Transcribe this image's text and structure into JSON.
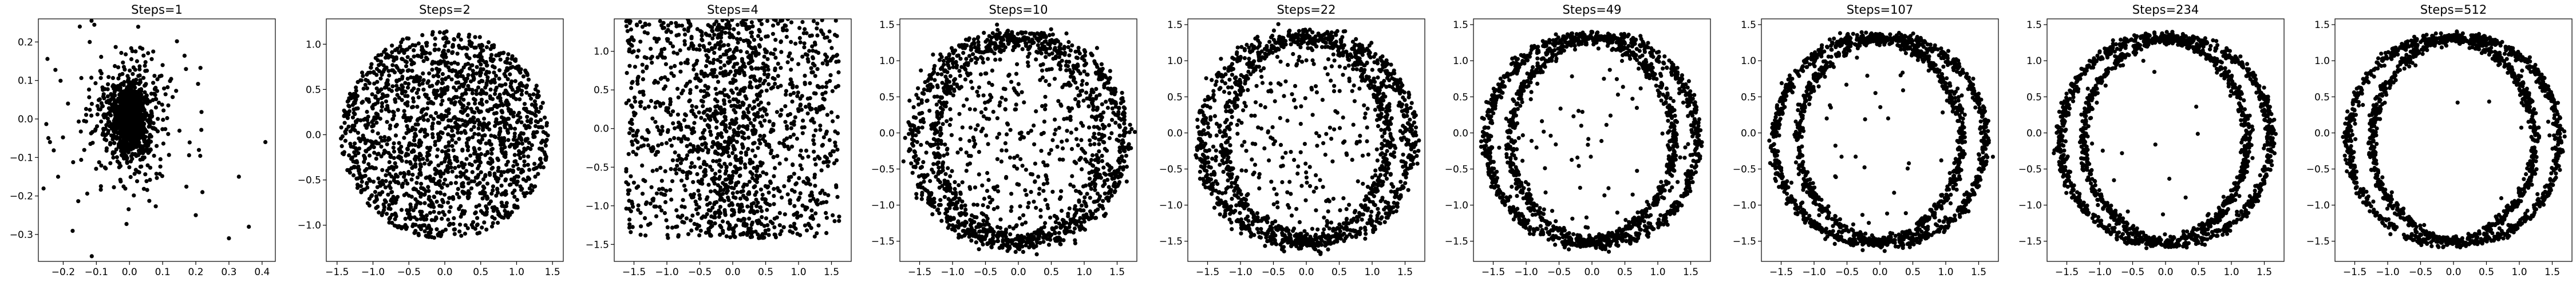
{
  "chart_data": [
    {
      "type": "scatter",
      "title": "Steps=1",
      "shape": "blob",
      "color": "#000000",
      "xlim": [
        -0.275,
        0.44
      ],
      "ylim": [
        -0.37,
        0.26
      ],
      "xticks": [
        -0.2,
        -0.1,
        0.0,
        0.1,
        0.2,
        0.3,
        0.4
      ],
      "xtick_labels": [
        "−0.2",
        "−0.1",
        "0.0",
        "0.1",
        "0.2",
        "0.3",
        "0.4"
      ],
      "yticks": [
        -0.3,
        -0.2,
        -0.1,
        0.0,
        0.1,
        0.2
      ],
      "ytick_labels": [
        "−0.3",
        "−0.2",
        "−0.1",
        "0.0",
        "0.1",
        "0.2"
      ],
      "n_points": 1200
    },
    {
      "type": "scatter",
      "title": "Steps=2",
      "shape": "ellipse-fill",
      "color": "#000000",
      "xlim": [
        -1.65,
        1.65
      ],
      "ylim": [
        -1.4,
        1.28
      ],
      "xticks": [
        -1.5,
        -1.0,
        -0.5,
        0.0,
        0.5,
        1.0,
        1.5
      ],
      "xtick_labels": [
        "−1.5",
        "−1.0",
        "−0.5",
        "0.0",
        "0.5",
        "1.0",
        "1.5"
      ],
      "yticks": [
        -1.0,
        -0.5,
        0.0,
        0.5,
        1.0
      ],
      "ytick_labels": [
        "−1.0",
        "−0.5",
        "0.0",
        "0.5",
        "1.0"
      ],
      "n_points": 1800
    },
    {
      "type": "scatter",
      "title": "Steps=4",
      "shape": "rect-fill",
      "color": "#000000",
      "xlim": [
        -1.8,
        1.8
      ],
      "ylim": [
        -1.72,
        1.42
      ],
      "xticks": [
        -1.5,
        -1.0,
        -0.5,
        0.0,
        0.5,
        1.0,
        1.5
      ],
      "xtick_labels": [
        "−1.5",
        "−1.0",
        "−0.5",
        "0.0",
        "0.5",
        "1.0",
        "1.5"
      ],
      "yticks": [
        -1.5,
        -1.0,
        -0.5,
        0.0,
        0.5,
        1.0
      ],
      "ytick_labels": [
        "−1.5",
        "−1.0",
        "−0.5",
        "0.0",
        "0.5",
        "1.0"
      ],
      "n_points": 1600
    },
    {
      "type": "scatter",
      "title": "Steps=10",
      "shape": "rings",
      "ring_fraction": 0.7,
      "color": "#000000",
      "xlim": [
        -1.8,
        1.8
      ],
      "ylim": [
        -1.78,
        1.58
      ],
      "xticks": [
        -1.5,
        -1.0,
        -0.5,
        0.0,
        0.5,
        1.0,
        1.5
      ],
      "xtick_labels": [
        "−1.5",
        "−1.0",
        "−0.5",
        "0.0",
        "0.5",
        "1.0",
        "1.5"
      ],
      "yticks": [
        -1.5,
        -1.0,
        -0.5,
        0.0,
        0.5,
        1.0,
        1.5
      ],
      "ytick_labels": [
        "−1.5",
        "−1.0",
        "−0.5",
        "0.0",
        "0.5",
        "1.0",
        "1.5"
      ],
      "n_points": 1600
    },
    {
      "type": "scatter",
      "title": "Steps=22",
      "shape": "rings",
      "ring_fraction": 0.78,
      "color": "#000000",
      "xlim": [
        -1.8,
        1.8
      ],
      "ylim": [
        -1.78,
        1.58
      ],
      "xticks": [
        -1.5,
        -1.0,
        -0.5,
        0.0,
        0.5,
        1.0,
        1.5
      ],
      "xtick_labels": [
        "−1.5",
        "−1.0",
        "−0.5",
        "0.0",
        "0.5",
        "1.0",
        "1.5"
      ],
      "yticks": [
        -1.5,
        -1.0,
        -0.5,
        0.0,
        0.5,
        1.0,
        1.5
      ],
      "ytick_labels": [
        "−1.5",
        "−1.0",
        "−0.5",
        "0.0",
        "0.5",
        "1.0",
        "1.5"
      ],
      "n_points": 1600
    },
    {
      "type": "scatter",
      "title": "Steps=49",
      "shape": "rings",
      "ring_fraction": 0.94,
      "color": "#000000",
      "xlim": [
        -1.8,
        1.8
      ],
      "ylim": [
        -1.78,
        1.58
      ],
      "xticks": [
        -1.5,
        -1.0,
        -0.5,
        0.0,
        0.5,
        1.0,
        1.5
      ],
      "xtick_labels": [
        "−1.5",
        "−1.0",
        "−0.5",
        "0.0",
        "0.5",
        "1.0",
        "1.5"
      ],
      "yticks": [
        -1.5,
        -1.0,
        -0.5,
        0.0,
        0.5,
        1.0,
        1.5
      ],
      "ytick_labels": [
        "−1.5",
        "−1.0",
        "−0.5",
        "0.0",
        "0.5",
        "1.0",
        "1.5"
      ],
      "n_points": 1600
    },
    {
      "type": "scatter",
      "title": "Steps=107",
      "shape": "rings",
      "ring_fraction": 0.97,
      "color": "#000000",
      "xlim": [
        -1.8,
        1.8
      ],
      "ylim": [
        -1.78,
        1.58
      ],
      "xticks": [
        -1.5,
        -1.0,
        -0.5,
        0.0,
        0.5,
        1.0,
        1.5
      ],
      "xtick_labels": [
        "−1.5",
        "−1.0",
        "−0.5",
        "0.0",
        "0.5",
        "1.0",
        "1.5"
      ],
      "yticks": [
        -1.5,
        -1.0,
        -0.5,
        0.0,
        0.5,
        1.0,
        1.5
      ],
      "ytick_labels": [
        "−1.5",
        "−1.0",
        "−0.5",
        "0.0",
        "0.5",
        "1.0",
        "1.5"
      ],
      "n_points": 1600
    },
    {
      "type": "scatter",
      "title": "Steps=234",
      "shape": "rings",
      "ring_fraction": 0.99,
      "color": "#000000",
      "xlim": [
        -1.8,
        1.8
      ],
      "ylim": [
        -1.78,
        1.58
      ],
      "xticks": [
        -1.5,
        -1.0,
        -0.5,
        0.0,
        0.5,
        1.0,
        1.5
      ],
      "xtick_labels": [
        "−1.5",
        "−1.0",
        "−0.5",
        "0.0",
        "0.5",
        "1.0",
        "1.5"
      ],
      "yticks": [
        -1.5,
        -1.0,
        -0.5,
        0.0,
        0.5,
        1.0,
        1.5
      ],
      "ytick_labels": [
        "−1.5",
        "−1.0",
        "−0.5",
        "0.0",
        "0.5",
        "1.0",
        "1.5"
      ],
      "n_points": 1600
    },
    {
      "type": "scatter",
      "title": "Steps=512",
      "shape": "rings",
      "ring_fraction": 0.995,
      "color": "#000000",
      "xlim": [
        -1.8,
        1.8
      ],
      "ylim": [
        -1.78,
        1.58
      ],
      "xticks": [
        -1.5,
        -1.0,
        -0.5,
        0.0,
        0.5,
        1.0,
        1.5
      ],
      "xtick_labels": [
        "−1.5",
        "−1.0",
        "−0.5",
        "0.0",
        "0.5",
        "1.0",
        "1.5"
      ],
      "yticks": [
        -1.5,
        -1.0,
        -0.5,
        0.0,
        0.5,
        1.0,
        1.5
      ],
      "ytick_labels": [
        "−1.5",
        "−1.0",
        "−0.5",
        "0.0",
        "0.5",
        "1.0",
        "1.5"
      ],
      "n_points": 1600
    }
  ]
}
